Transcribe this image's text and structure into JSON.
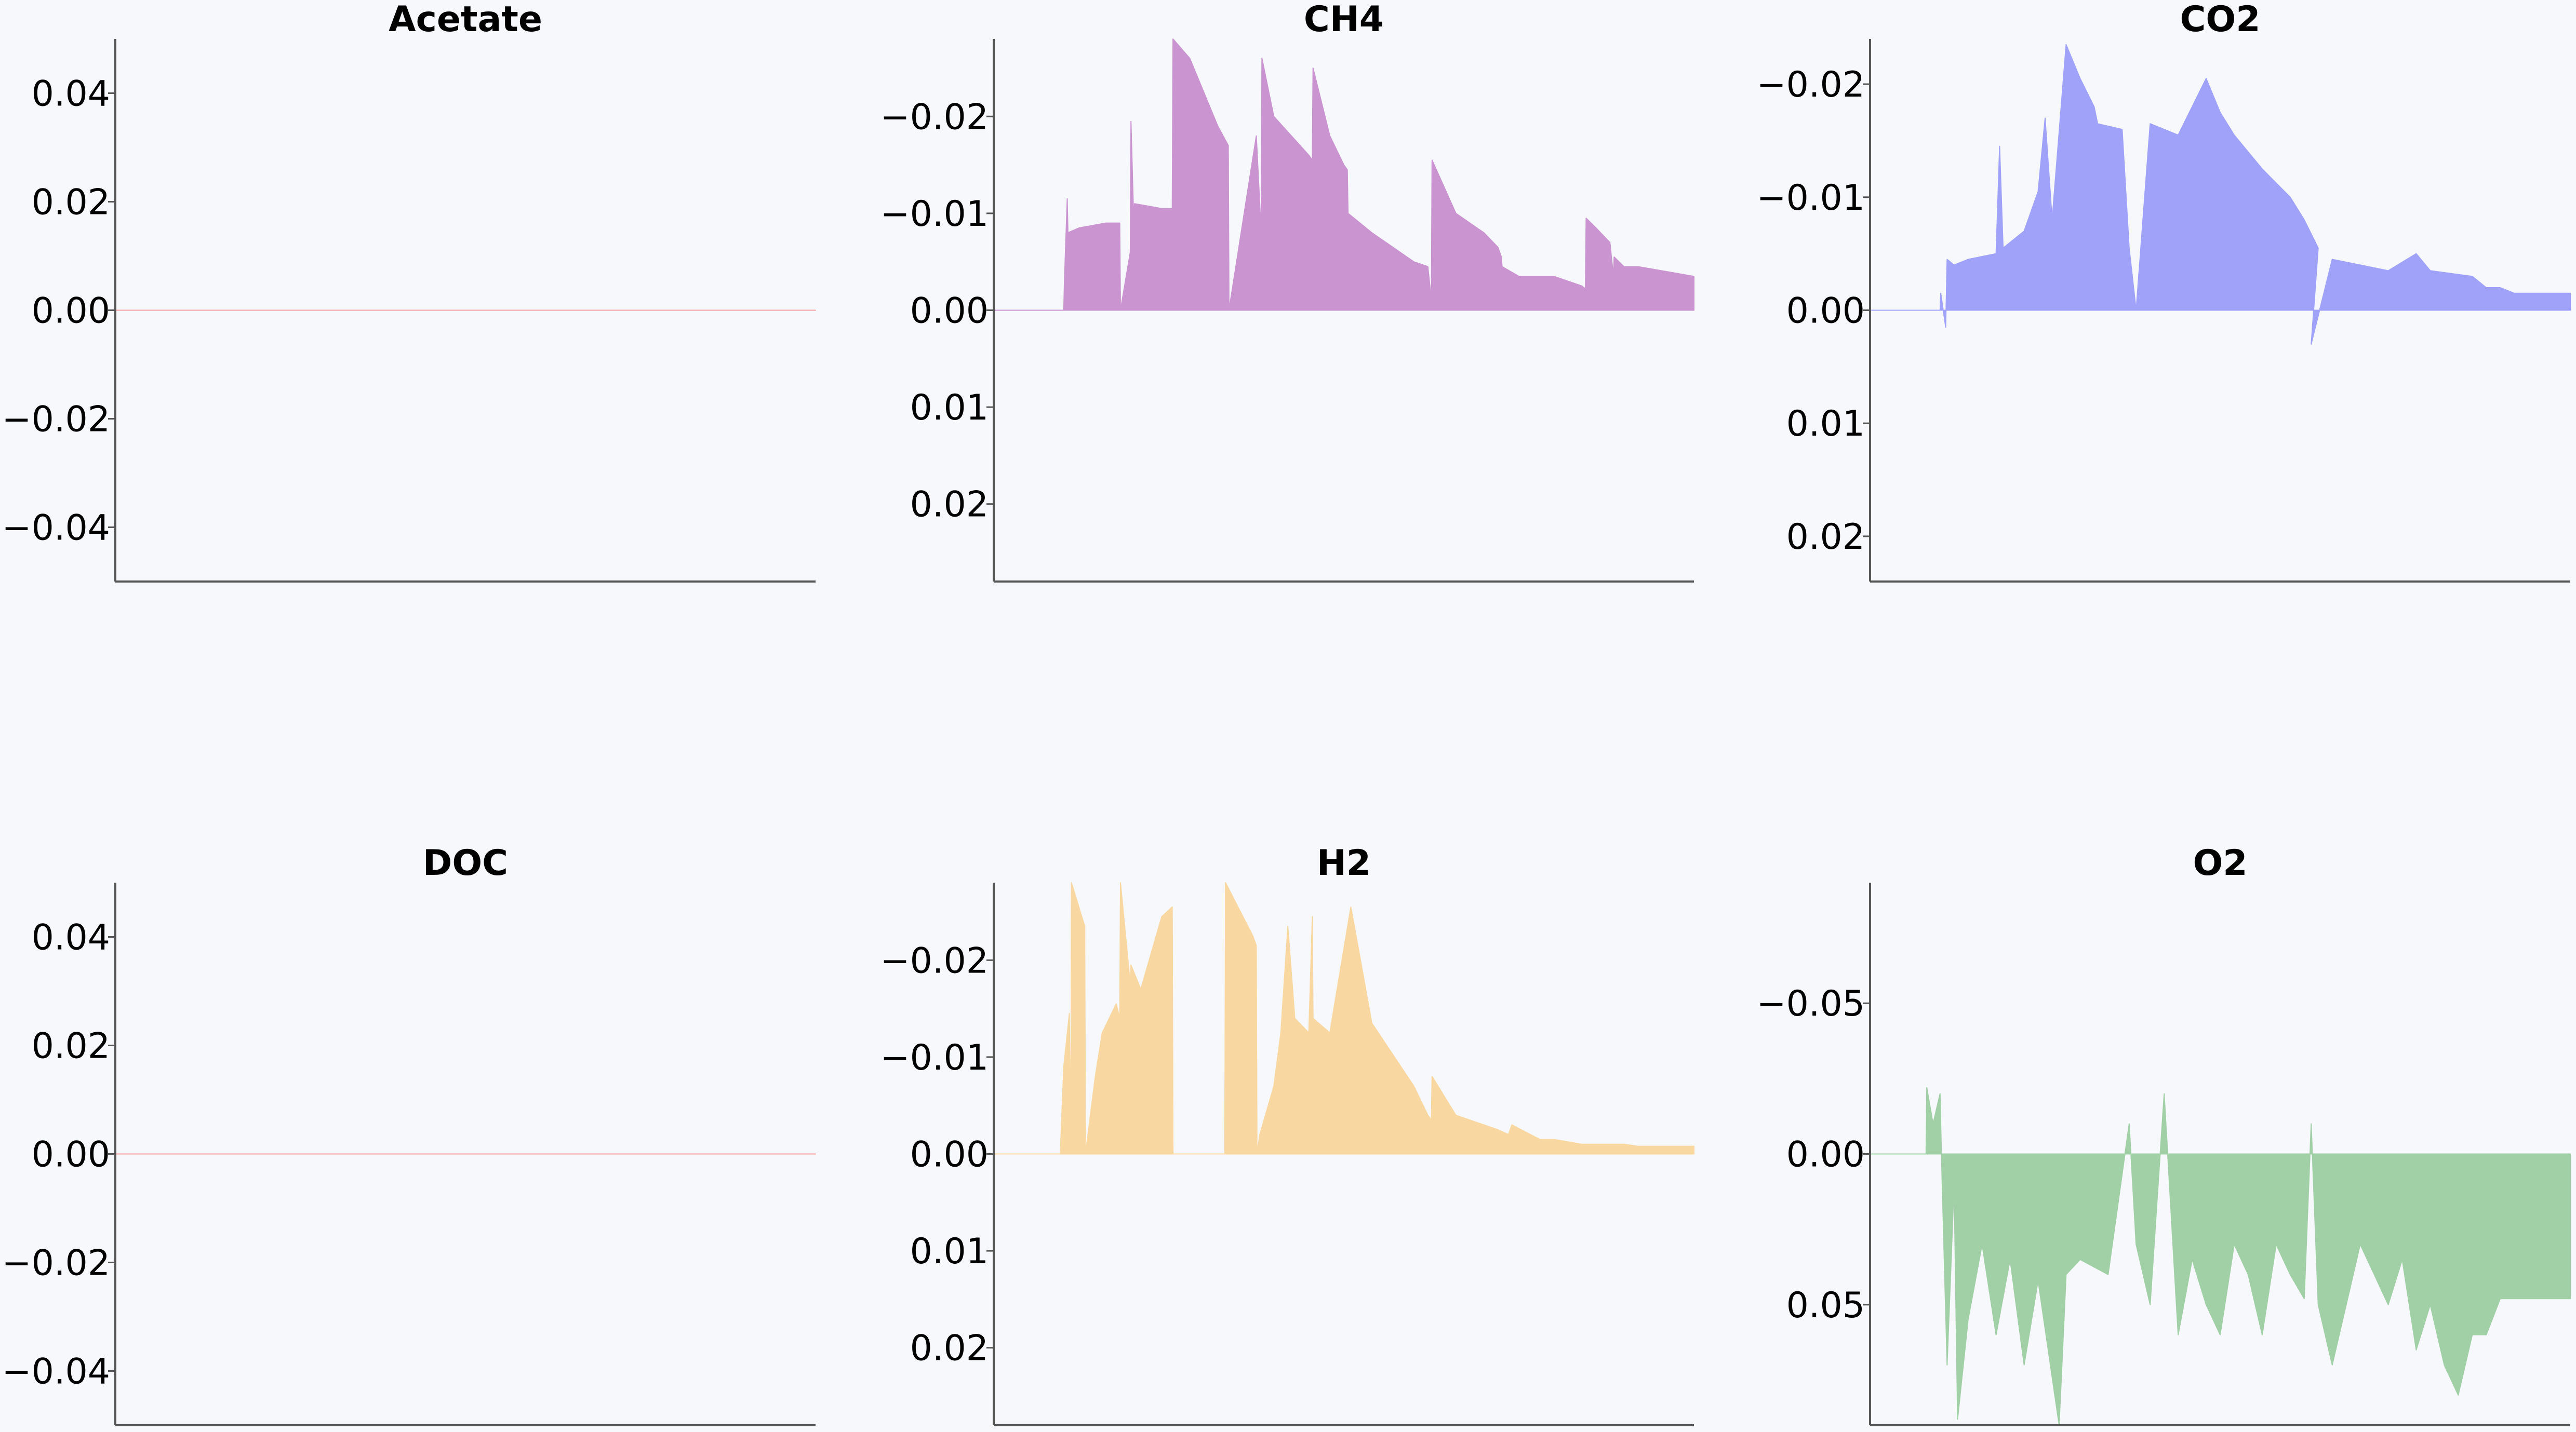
{
  "chart_data": [
    {
      "type": "area",
      "title": "Acetate",
      "color": "#f5a0a0",
      "ylim": [
        -0.05,
        0.05
      ],
      "inverted": false,
      "yticks": [
        {
          "v": 0.04,
          "label": "0.04"
        },
        {
          "v": 0.02,
          "label": "0.02"
        },
        {
          "v": 0.0,
          "label": "0.00"
        },
        {
          "v": -0.02,
          "label": "−0.02"
        },
        {
          "v": -0.04,
          "label": "−0.04"
        }
      ],
      "x": [
        0,
        1
      ],
      "values": [
        0.0,
        0.0
      ]
    },
    {
      "type": "area",
      "title": "CH4",
      "color": "#c994cf",
      "ylim": [
        -0.028,
        0.028
      ],
      "inverted": true,
      "yticks": [
        {
          "v": -0.02,
          "label": "−0.02"
        },
        {
          "v": -0.01,
          "label": "−0.01"
        },
        {
          "v": 0.0,
          "label": "0.00"
        },
        {
          "v": 0.01,
          "label": "0.01"
        },
        {
          "v": 0.02,
          "label": "0.02"
        }
      ],
      "x": [
        0,
        0.1,
        0.101,
        0.105,
        0.106,
        0.122,
        0.16,
        0.18,
        0.181,
        0.195,
        0.196,
        0.2,
        0.201,
        0.24,
        0.255,
        0.256,
        0.28,
        0.32,
        0.335,
        0.336,
        0.375,
        0.382,
        0.383,
        0.4,
        0.45,
        0.455,
        0.456,
        0.48,
        0.5,
        0.505,
        0.506,
        0.54,
        0.6,
        0.62,
        0.625,
        0.626,
        0.66,
        0.7,
        0.72,
        0.725,
        0.726,
        0.75,
        0.8,
        0.84,
        0.845,
        0.846,
        0.86,
        0.88,
        0.885,
        0.886,
        0.9,
        0.92,
        1.0
      ],
      "values": [
        0,
        0,
        -0.003,
        -0.0115,
        -0.008,
        -0.0085,
        -0.009,
        -0.009,
        0,
        -0.006,
        -0.0195,
        -0.009,
        -0.011,
        -0.0105,
        -0.0105,
        -0.028,
        -0.026,
        -0.019,
        -0.017,
        0,
        -0.018,
        -0.008,
        -0.026,
        -0.02,
        -0.016,
        -0.0155,
        -0.025,
        -0.018,
        -0.015,
        -0.0145,
        -0.01,
        -0.008,
        -0.005,
        -0.0045,
        -0.001,
        -0.0155,
        -0.01,
        -0.008,
        -0.0065,
        -0.0055,
        -0.0045,
        -0.0035,
        -0.0035,
        -0.0025,
        -0.0022,
        -0.0095,
        -0.0085,
        -0.007,
        -0.0035,
        -0.0055,
        -0.0045,
        -0.0045,
        -0.0035
      ]
    },
    {
      "type": "area",
      "title": "CO2",
      "color": "#a0a2fa",
      "ylim": [
        -0.024,
        0.024
      ],
      "inverted": true,
      "yticks": [
        {
          "v": -0.02,
          "label": "−0.02"
        },
        {
          "v": -0.01,
          "label": "−0.01"
        },
        {
          "v": 0.0,
          "label": "0.00"
        },
        {
          "v": 0.01,
          "label": "0.01"
        },
        {
          "v": 0.02,
          "label": "0.02"
        }
      ],
      "x": [
        0,
        0.1,
        0.101,
        0.108,
        0.11,
        0.12,
        0.14,
        0.18,
        0.185,
        0.19,
        0.22,
        0.24,
        0.25,
        0.26,
        0.28,
        0.3,
        0.32,
        0.325,
        0.36,
        0.37,
        0.38,
        0.4,
        0.44,
        0.48,
        0.5,
        0.52,
        0.56,
        0.6,
        0.62,
        0.64,
        0.63,
        0.66,
        0.7,
        0.74,
        0.78,
        0.8,
        0.86,
        0.88,
        0.9,
        0.92,
        1.0
      ],
      "values": [
        0,
        0,
        -0.0015,
        0.0015,
        -0.0045,
        -0.004,
        -0.0045,
        -0.005,
        -0.0145,
        -0.0055,
        -0.007,
        -0.0105,
        -0.017,
        -0.008,
        -0.0235,
        -0.0205,
        -0.018,
        -0.0165,
        -0.016,
        -0.0055,
        0,
        -0.0165,
        -0.0155,
        -0.0205,
        -0.0175,
        -0.0155,
        -0.0125,
        -0.01,
        -0.008,
        -0.0055,
        0.003,
        -0.0045,
        -0.004,
        -0.0035,
        -0.005,
        -0.0035,
        -0.003,
        -0.002,
        -0.002,
        -0.0015,
        -0.0015
      ]
    },
    {
      "type": "area",
      "title": "DOC",
      "color": "#f5a0a0",
      "ylim": [
        -0.05,
        0.05
      ],
      "inverted": false,
      "yticks": [
        {
          "v": 0.04,
          "label": "0.04"
        },
        {
          "v": 0.02,
          "label": "0.02"
        },
        {
          "v": 0.0,
          "label": "0.00"
        },
        {
          "v": -0.02,
          "label": "−0.02"
        },
        {
          "v": -0.04,
          "label": "−0.04"
        }
      ],
      "x": [
        0,
        1
      ],
      "values": [
        0.0,
        0.0
      ]
    },
    {
      "type": "area",
      "title": "H2",
      "color": "#f8d7a0",
      "ylim": [
        -0.028,
        0.028
      ],
      "inverted": true,
      "yticks": [
        {
          "v": -0.02,
          "label": "−0.02"
        },
        {
          "v": -0.01,
          "label": "−0.01"
        },
        {
          "v": 0.0,
          "label": "0.00"
        },
        {
          "v": 0.01,
          "label": "0.01"
        },
        {
          "v": 0.02,
          "label": "0.02"
        }
      ],
      "x": [
        0,
        0.095,
        0.1,
        0.108,
        0.11,
        0.111,
        0.13,
        0.131,
        0.145,
        0.155,
        0.175,
        0.18,
        0.181,
        0.195,
        0.196,
        0.21,
        0.24,
        0.255,
        0.256,
        0.33,
        0.331,
        0.37,
        0.375,
        0.376,
        0.38,
        0.4,
        0.41,
        0.42,
        0.43,
        0.45,
        0.455,
        0.456,
        0.48,
        0.51,
        0.54,
        0.6,
        0.62,
        0.625,
        0.626,
        0.66,
        0.7,
        0.72,
        0.735,
        0.74,
        0.78,
        0.8,
        0.84,
        0.86,
        0.9,
        0.92,
        1.0
      ],
      "values": [
        0,
        0,
        -0.009,
        -0.0145,
        0,
        -0.028,
        -0.0235,
        0,
        -0.008,
        -0.0125,
        -0.0155,
        -0.014,
        -0.028,
        -0.0175,
        -0.0195,
        -0.017,
        -0.0245,
        -0.0255,
        0,
        0,
        -0.028,
        -0.0225,
        -0.0215,
        0,
        -0.002,
        -0.007,
        -0.0125,
        -0.0235,
        -0.014,
        -0.0125,
        -0.0245,
        -0.014,
        -0.0125,
        -0.0255,
        -0.0135,
        -0.007,
        -0.004,
        -0.0035,
        -0.008,
        -0.004,
        -0.003,
        -0.0025,
        -0.002,
        -0.003,
        -0.0015,
        -0.0015,
        -0.001,
        -0.001,
        -0.001,
        -0.0008,
        -0.0008
      ]
    },
    {
      "type": "area",
      "title": "O2",
      "color": "#a2d0a6",
      "ylim": [
        -0.09,
        0.09
      ],
      "inverted": true,
      "yticks": [
        {
          "v": -0.05,
          "label": "−0.05"
        },
        {
          "v": 0.0,
          "label": "0.00"
        },
        {
          "v": 0.05,
          "label": "0.05"
        }
      ],
      "x": [
        0,
        0.08,
        0.081,
        0.09,
        0.1,
        0.102,
        0.11,
        0.12,
        0.125,
        0.14,
        0.16,
        0.18,
        0.2,
        0.22,
        0.24,
        0.27,
        0.28,
        0.3,
        0.34,
        0.37,
        0.38,
        0.4,
        0.42,
        0.44,
        0.46,
        0.48,
        0.5,
        0.52,
        0.54,
        0.56,
        0.58,
        0.6,
        0.62,
        0.63,
        0.64,
        0.66,
        0.7,
        0.72,
        0.74,
        0.76,
        0.78,
        0.8,
        0.82,
        0.84,
        0.86,
        0.88,
        0.9,
        1.0
      ],
      "values": [
        0,
        0,
        -0.022,
        -0.01,
        -0.02,
        0.001,
        0.07,
        0.01,
        0.088,
        0.055,
        0.03,
        0.06,
        0.035,
        0.07,
        0.042,
        0.09,
        0.04,
        0.035,
        0.04,
        -0.01,
        0.03,
        0.05,
        -0.02,
        0.06,
        0.035,
        0.05,
        0.06,
        0.03,
        0.04,
        0.06,
        0.03,
        0.04,
        0.048,
        -0.01,
        0.05,
        0.07,
        0.03,
        0.04,
        0.05,
        0.035,
        0.065,
        0.05,
        0.07,
        0.08,
        0.06,
        0.06,
        0.048,
        0.048
      ]
    }
  ]
}
